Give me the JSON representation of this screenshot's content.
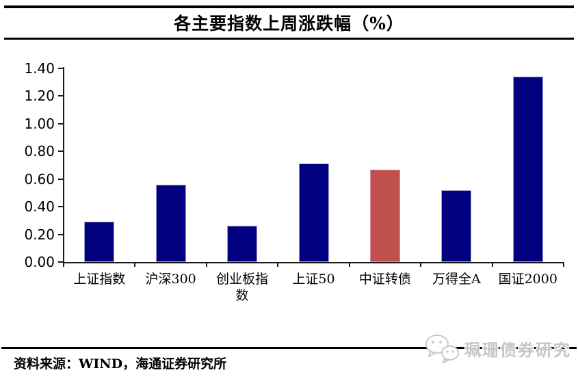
{
  "title": "各主要指数上周涨跌幅（%）",
  "source": "资料来源：WIND，海通证券研究所",
  "watermark": {
    "text": "珮珊债券研究",
    "icon": "wechat-chat-bubbles-icon"
  },
  "colors": {
    "bar_default": "#000080",
    "bar_default_border": "#a0a0d0",
    "bar_highlight": "#C0504D",
    "bar_highlight_border": "#d99694",
    "axis": "#1a1a1a",
    "text": "#000000",
    "watermark_gray": "#c6c6c6",
    "background": "#ffffff"
  },
  "chart_data": {
    "type": "bar",
    "title": "各主要指数上周涨跌幅（%）",
    "categories": [
      "上证指数",
      "沪深300",
      "创业板指数",
      "上证50",
      "中证转债",
      "万得全A",
      "国证2000"
    ],
    "values": [
      0.29,
      0.56,
      0.26,
      0.71,
      0.67,
      0.52,
      1.34
    ],
    "bar_colors": [
      "#000080",
      "#000080",
      "#000080",
      "#000080",
      "#C0504D",
      "#000080",
      "#000080"
    ],
    "bar_border_colors": [
      "#a0a0d0",
      "#a0a0d0",
      "#a0a0d0",
      "#a0a0d0",
      "#d99694",
      "#a0a0d0",
      "#a0a0d0"
    ],
    "highlight_category": "中证转债",
    "xlabel": "",
    "ylabel": "",
    "ylim": [
      0.0,
      1.4
    ],
    "ytick_step": 0.2,
    "y_ticks": [
      "1.40",
      "1.20",
      "1.00",
      "0.80",
      "0.60",
      "0.40",
      "0.20",
      "0.00"
    ],
    "grid": false,
    "legend": "none"
  }
}
